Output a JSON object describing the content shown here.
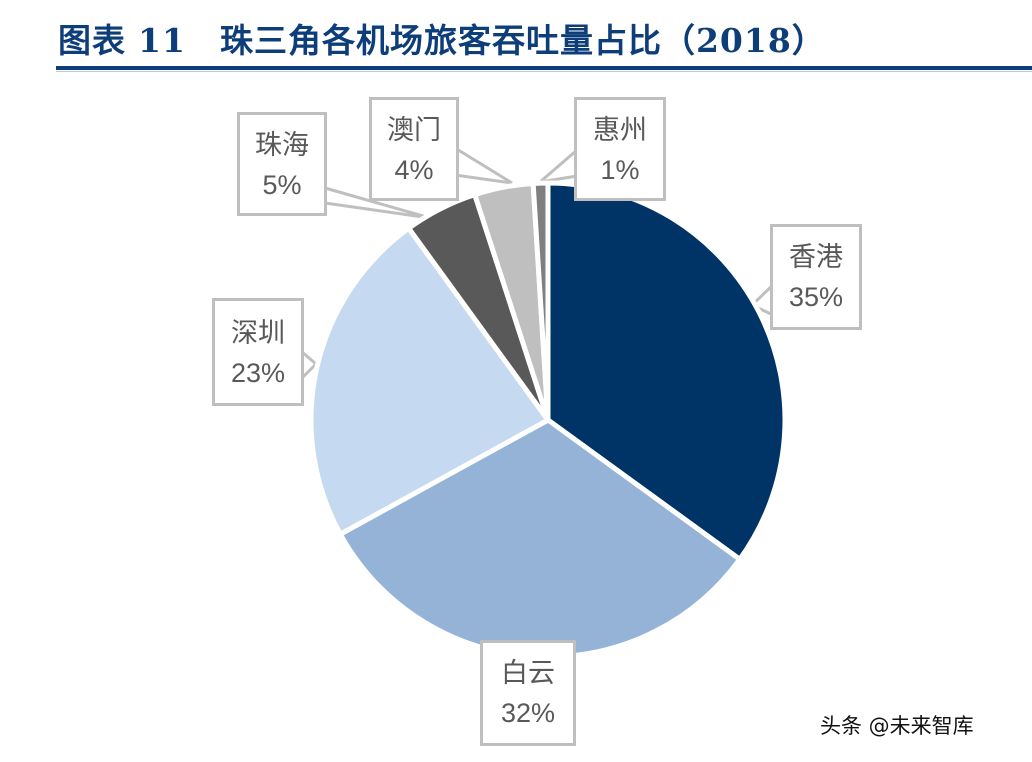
{
  "header": {
    "figure_label": "图表",
    "figure_number": "11",
    "title": "珠三角各机场旅客吞吐量占比（2018）"
  },
  "watermark": "头条 @未来智库",
  "chart_data": {
    "type": "pie",
    "title": "图表 11 珠三角各机场旅客吞吐量占比（2018）",
    "start_angle_deg": 0,
    "direction": "clockwise",
    "slices": [
      {
        "label": "香港",
        "value": 35,
        "display": "35%",
        "color": "#003366"
      },
      {
        "label": "白云",
        "value": 32,
        "display": "32%",
        "color": "#95b3d7"
      },
      {
        "label": "深圳",
        "value": 23,
        "display": "23%",
        "color": "#c5d9f1"
      },
      {
        "label": "珠海",
        "value": 5,
        "display": "5%",
        "color": "#595959"
      },
      {
        "label": "澳门",
        "value": 4,
        "display": "4%",
        "color": "#bfbfbf"
      },
      {
        "label": "惠州",
        "value": 1,
        "display": "1%",
        "color": "#7f7f7f"
      }
    ],
    "legend": "none",
    "data_labels": "callouts with category name and percentage"
  }
}
